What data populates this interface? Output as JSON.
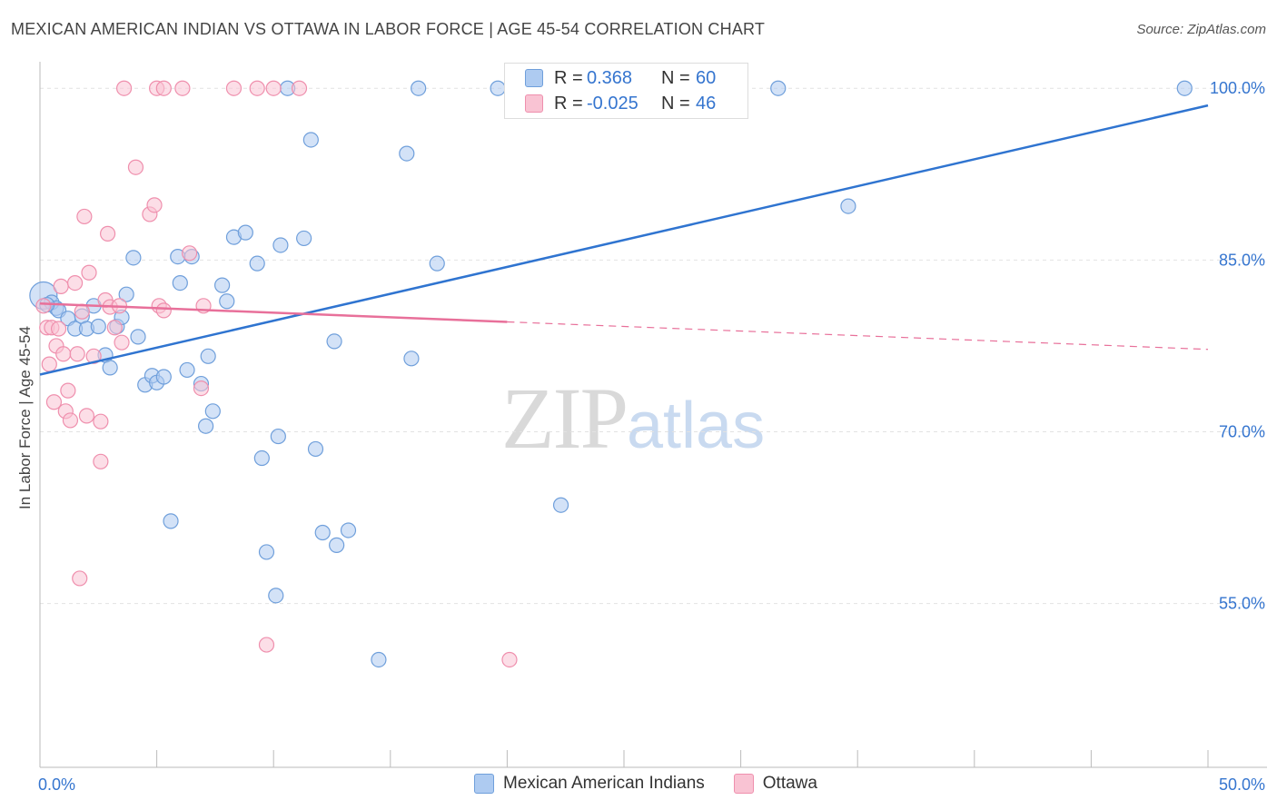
{
  "title": "MEXICAN AMERICAN INDIAN VS OTTAWA IN LABOR FORCE | AGE 45-54 CORRELATION CHART",
  "source": "Source: ZipAtlas.com",
  "watermark": {
    "zip": "ZIP",
    "atlas": "atlas"
  },
  "legend": {
    "rows": [
      {
        "r_label": "R =",
        "r_value": "0.368",
        "n_label": "N =",
        "n_value": "60",
        "color": "#aecbf1",
        "border": "#6f9fdb"
      },
      {
        "r_label": "R =",
        "r_value": "-0.025",
        "n_label": "N =",
        "n_value": "46",
        "color": "#f9c3d3",
        "border": "#ef8fad"
      }
    ]
  },
  "bottom_legend": [
    {
      "label": "Mexican American Indians",
      "color": "#aecbf1",
      "border": "#6f9fdb"
    },
    {
      "label": "Ottawa",
      "color": "#f9c3d3",
      "border": "#ef8fad"
    }
  ],
  "chart_data": {
    "type": "scatter",
    "title": "MEXICAN AMERICAN INDIAN VS OTTAWA IN LABOR FORCE | AGE 45-54 CORRELATION CHART",
    "xlabel": "",
    "ylabel": "In Labor Force | Age 45-54",
    "xlim": [
      0,
      50
    ],
    "ylim": [
      40.7,
      102.0
    ],
    "x_tick_labels": [
      "0.0%",
      "50.0%"
    ],
    "y_ticks": [
      55.0,
      70.0,
      85.0,
      100.0
    ],
    "y_tick_labels": [
      "55.0%",
      "70.0%",
      "85.0%",
      "100.0%"
    ],
    "grid": true,
    "series": [
      {
        "name": "Mexican American Indians",
        "color": "#6f9fdb",
        "fill": "#aecbf1",
        "trend": {
          "x": [
            0,
            50
          ],
          "y": [
            75.0,
            98.5
          ],
          "color": "#2f74d0"
        },
        "points": [
          [
            0.15,
            81.9
          ],
          [
            0.5,
            81.3
          ],
          [
            0.7,
            80.8
          ],
          [
            0.8,
            80.6
          ],
          [
            1.2,
            79.9
          ],
          [
            1.5,
            79.0
          ],
          [
            1.8,
            80.1
          ],
          [
            2.0,
            79.0
          ],
          [
            2.3,
            81.0
          ],
          [
            2.5,
            79.2
          ],
          [
            2.8,
            76.7
          ],
          [
            3.0,
            75.6
          ],
          [
            3.3,
            79.2
          ],
          [
            3.5,
            80.0
          ],
          [
            3.7,
            82.0
          ],
          [
            4.0,
            85.2
          ],
          [
            4.2,
            78.3
          ],
          [
            4.5,
            74.1
          ],
          [
            4.8,
            74.9
          ],
          [
            5.0,
            74.3
          ],
          [
            5.3,
            74.8
          ],
          [
            5.6,
            62.2
          ],
          [
            5.9,
            85.3
          ],
          [
            6.0,
            83.0
          ],
          [
            6.3,
            75.4
          ],
          [
            6.5,
            85.3
          ],
          [
            6.9,
            74.2
          ],
          [
            7.1,
            70.5
          ],
          [
            7.2,
            76.6
          ],
          [
            7.4,
            71.8
          ],
          [
            7.8,
            82.8
          ],
          [
            8.0,
            81.4
          ],
          [
            8.3,
            87.0
          ],
          [
            8.8,
            87.4
          ],
          [
            9.3,
            84.7
          ],
          [
            9.5,
            67.7
          ],
          [
            9.7,
            59.5
          ],
          [
            10.1,
            55.7
          ],
          [
            10.2,
            69.6
          ],
          [
            10.3,
            86.3
          ],
          [
            10.6,
            100.0
          ],
          [
            11.3,
            86.9
          ],
          [
            11.6,
            95.5
          ],
          [
            11.8,
            68.5
          ],
          [
            12.1,
            61.2
          ],
          [
            12.6,
            77.9
          ],
          [
            12.7,
            60.1
          ],
          [
            13.2,
            61.4
          ],
          [
            14.5,
            50.1
          ],
          [
            15.7,
            94.3
          ],
          [
            15.9,
            76.4
          ],
          [
            16.2,
            100.0
          ],
          [
            17.0,
            84.7
          ],
          [
            19.6,
            100.0
          ],
          [
            22.3,
            63.6
          ],
          [
            26.2,
            100.0
          ],
          [
            31.6,
            100.0
          ],
          [
            34.6,
            89.7
          ],
          [
            49.0,
            100.0
          ],
          [
            0.3,
            81.1
          ]
        ]
      },
      {
        "name": "Ottawa",
        "color": "#ef8fad",
        "fill": "#f9c3d3",
        "trend": {
          "x": [
            0,
            20.0
          ],
          "y": [
            81.2,
            79.6
          ],
          "dash_x": [
            20.0,
            50
          ],
          "dash_y": [
            79.6,
            77.2
          ],
          "color": "#e8709a"
        },
        "points": [
          [
            0.15,
            81.0
          ],
          [
            0.3,
            79.1
          ],
          [
            0.4,
            75.9
          ],
          [
            0.5,
            79.1
          ],
          [
            0.6,
            72.6
          ],
          [
            0.7,
            77.5
          ],
          [
            0.8,
            79.0
          ],
          [
            0.9,
            82.7
          ],
          [
            1.0,
            76.8
          ],
          [
            1.1,
            71.8
          ],
          [
            1.2,
            73.6
          ],
          [
            1.3,
            71.0
          ],
          [
            1.5,
            83.0
          ],
          [
            1.6,
            76.8
          ],
          [
            1.7,
            57.2
          ],
          [
            1.8,
            80.5
          ],
          [
            1.9,
            88.8
          ],
          [
            2.0,
            71.4
          ],
          [
            2.1,
            83.9
          ],
          [
            2.3,
            76.6
          ],
          [
            2.6,
            70.9
          ],
          [
            2.6,
            67.4
          ],
          [
            2.8,
            81.5
          ],
          [
            2.9,
            87.3
          ],
          [
            3.0,
            80.9
          ],
          [
            3.2,
            79.1
          ],
          [
            3.4,
            81.0
          ],
          [
            3.5,
            77.8
          ],
          [
            3.6,
            100.0
          ],
          [
            4.1,
            93.1
          ],
          [
            4.7,
            89.0
          ],
          [
            4.9,
            89.8
          ],
          [
            5.0,
            100.0
          ],
          [
            5.1,
            81.0
          ],
          [
            5.3,
            80.6
          ],
          [
            5.3,
            100.0
          ],
          [
            6.1,
            100.0
          ],
          [
            6.4,
            85.6
          ],
          [
            7.0,
            81.0
          ],
          [
            6.9,
            73.8
          ],
          [
            8.3,
            100.0
          ],
          [
            9.3,
            100.0
          ],
          [
            9.7,
            51.4
          ],
          [
            10.0,
            100.0
          ],
          [
            11.1,
            100.0
          ],
          [
            20.1,
            50.1
          ]
        ]
      }
    ]
  }
}
